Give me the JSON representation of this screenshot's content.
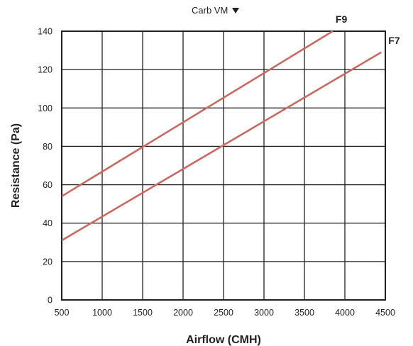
{
  "selector": {
    "label": "Carb VM",
    "icon": "triangle-down-icon"
  },
  "chart_data": {
    "type": "line",
    "title": "",
    "xlabel": "Airflow (CMH)",
    "ylabel": "Resistance (Pa)",
    "xlim": [
      500,
      4500
    ],
    "ylim": [
      0,
      140
    ],
    "xticks": [
      500,
      1000,
      1500,
      2000,
      2500,
      3000,
      3500,
      4000,
      4500
    ],
    "yticks": [
      0,
      20,
      40,
      60,
      80,
      100,
      120,
      140
    ],
    "grid": true,
    "line_color": "#c96a62",
    "series": [
      {
        "name": "F9",
        "x": [
          500,
          3850
        ],
        "y": [
          54,
          140
        ]
      },
      {
        "name": "F7",
        "x": [
          500,
          4450
        ],
        "y": [
          31,
          129
        ]
      }
    ]
  }
}
